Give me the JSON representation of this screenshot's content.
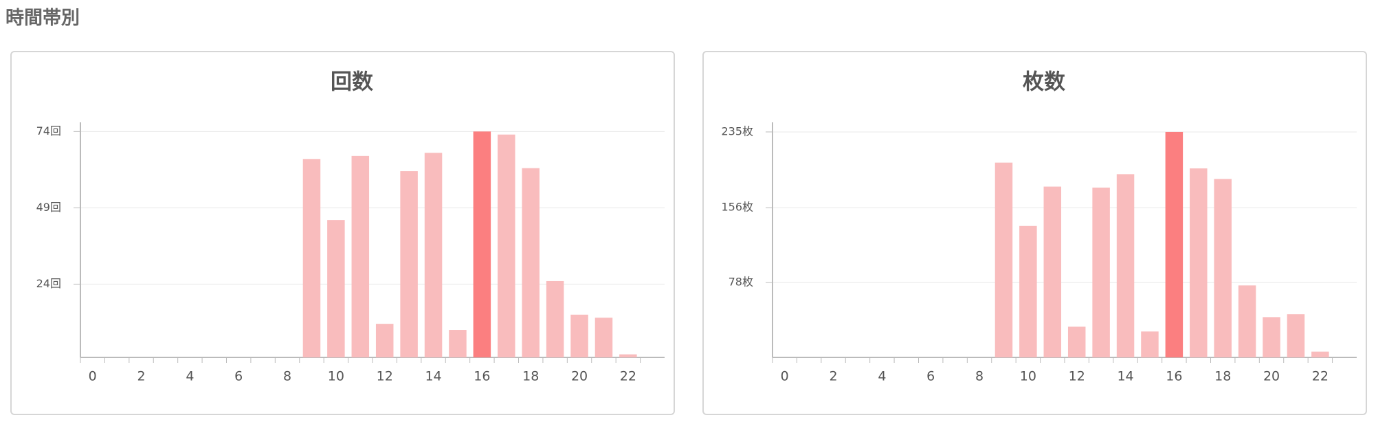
{
  "heading": "時間帯別",
  "chart_data": [
    {
      "type": "bar",
      "title": "回数",
      "categories": [
        "0",
        null,
        "2",
        null,
        "4",
        null,
        "6",
        null,
        "8",
        null,
        "10",
        null,
        "12",
        null,
        "14",
        null,
        "16",
        null,
        "18",
        null,
        "20",
        null,
        "22",
        null
      ],
      "values": [
        0,
        0,
        0,
        0,
        0,
        0,
        0,
        0,
        0,
        65,
        45,
        66,
        11,
        61,
        67,
        9,
        74,
        73,
        62,
        25,
        14,
        13,
        1,
        0
      ],
      "colors": [
        "#f9bcbd",
        "#f9bcbd",
        "#f9bcbd",
        "#f9bcbd",
        "#f9bcbd",
        "#f9bcbd",
        "#f9bcbd",
        "#f9bcbd",
        "#f9bcbd",
        "#f9bcbd",
        "#f9bcbd",
        "#f9bcbd",
        "#f9bcbd",
        "#f9bcbd",
        "#f9bcbd",
        "#f9bcbd",
        "#fb7f80",
        "#f9bcbd",
        "#f9bcbd",
        "#f9bcbd",
        "#f9bcbd",
        "#f9bcbd",
        "#f9bcbd",
        "#f9bcbd"
      ],
      "ylim": [
        0,
        77
      ],
      "yticks": [
        {
          "value": 24,
          "label": "24回"
        },
        {
          "value": 49,
          "label": "49回"
        },
        {
          "value": 74,
          "label": "74回"
        }
      ],
      "grid": true
    },
    {
      "type": "bar",
      "title": "枚数",
      "categories": [
        "0",
        null,
        "2",
        null,
        "4",
        null,
        "6",
        null,
        "8",
        null,
        "10",
        null,
        "12",
        null,
        "14",
        null,
        "16",
        null,
        "18",
        null,
        "20",
        null,
        "22",
        null
      ],
      "values": [
        0,
        0,
        0,
        0,
        0,
        0,
        0,
        0,
        0,
        203,
        137,
        178,
        32,
        177,
        191,
        27,
        235,
        197,
        186,
        75,
        42,
        45,
        6,
        0
      ],
      "colors": [
        "#f9bcbd",
        "#f9bcbd",
        "#f9bcbd",
        "#f9bcbd",
        "#f9bcbd",
        "#f9bcbd",
        "#f9bcbd",
        "#f9bcbd",
        "#f9bcbd",
        "#f9bcbd",
        "#f9bcbd",
        "#f9bcbd",
        "#f9bcbd",
        "#f9bcbd",
        "#f9bcbd",
        "#f9bcbd",
        "#fb7f80",
        "#f9bcbd",
        "#f9bcbd",
        "#f9bcbd",
        "#f9bcbd",
        "#f9bcbd",
        "#f9bcbd",
        "#f9bcbd"
      ],
      "ylim": [
        0,
        245
      ],
      "yticks": [
        {
          "value": 78,
          "label": "78枚"
        },
        {
          "value": 156,
          "label": "156枚"
        },
        {
          "value": 235,
          "label": "235枚"
        }
      ],
      "grid": true
    }
  ]
}
